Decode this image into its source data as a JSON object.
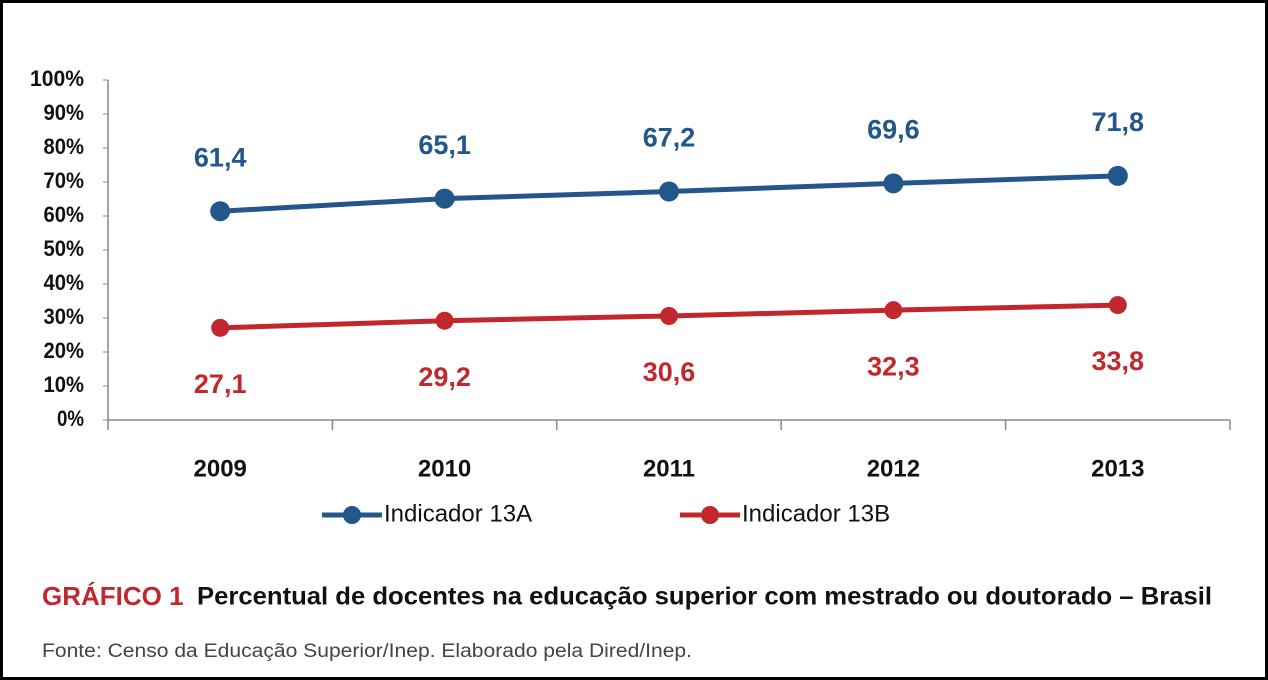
{
  "chart_data": {
    "type": "line",
    "title": "Percentual de docentes na educação superior com mestrado ou doutorado – Brasil",
    "figure_label": "GRÁFICO 1",
    "source": "Fonte: Censo da Educação Superior/Inep. Elaborado pela Dired/Inep.",
    "categories": [
      "2009",
      "2010",
      "2011",
      "2012",
      "2013"
    ],
    "series": [
      {
        "name": "Indicador 13A",
        "color": "#23568a",
        "values": [
          61.4,
          65.1,
          67.2,
          69.6,
          71.8
        ],
        "value_labels": [
          "61,4",
          "65,1",
          "67,2",
          "69,6",
          "71,8"
        ]
      },
      {
        "name": "Indicador 13B",
        "color": "#c1272d",
        "values": [
          27.1,
          29.2,
          30.6,
          32.3,
          33.8
        ],
        "value_labels": [
          "27,1",
          "29,2",
          "30,6",
          "32,3",
          "33,8"
        ]
      }
    ],
    "ylim": [
      0,
      100
    ],
    "yticks": [
      {
        "value": 0,
        "label": "0%"
      },
      {
        "value": 10,
        "label": "10%"
      },
      {
        "value": 20,
        "label": "20%"
      },
      {
        "value": 30,
        "label": "30%"
      },
      {
        "value": 40,
        "label": "40%"
      },
      {
        "value": 50,
        "label": "50%"
      },
      {
        "value": 60,
        "label": "60%"
      },
      {
        "value": 70,
        "label": "70%"
      },
      {
        "value": 80,
        "label": "80%"
      },
      {
        "value": 90,
        "label": "90%"
      },
      {
        "value": 100,
        "label": "100%"
      }
    ],
    "grid": false,
    "legend": "bottom"
  }
}
